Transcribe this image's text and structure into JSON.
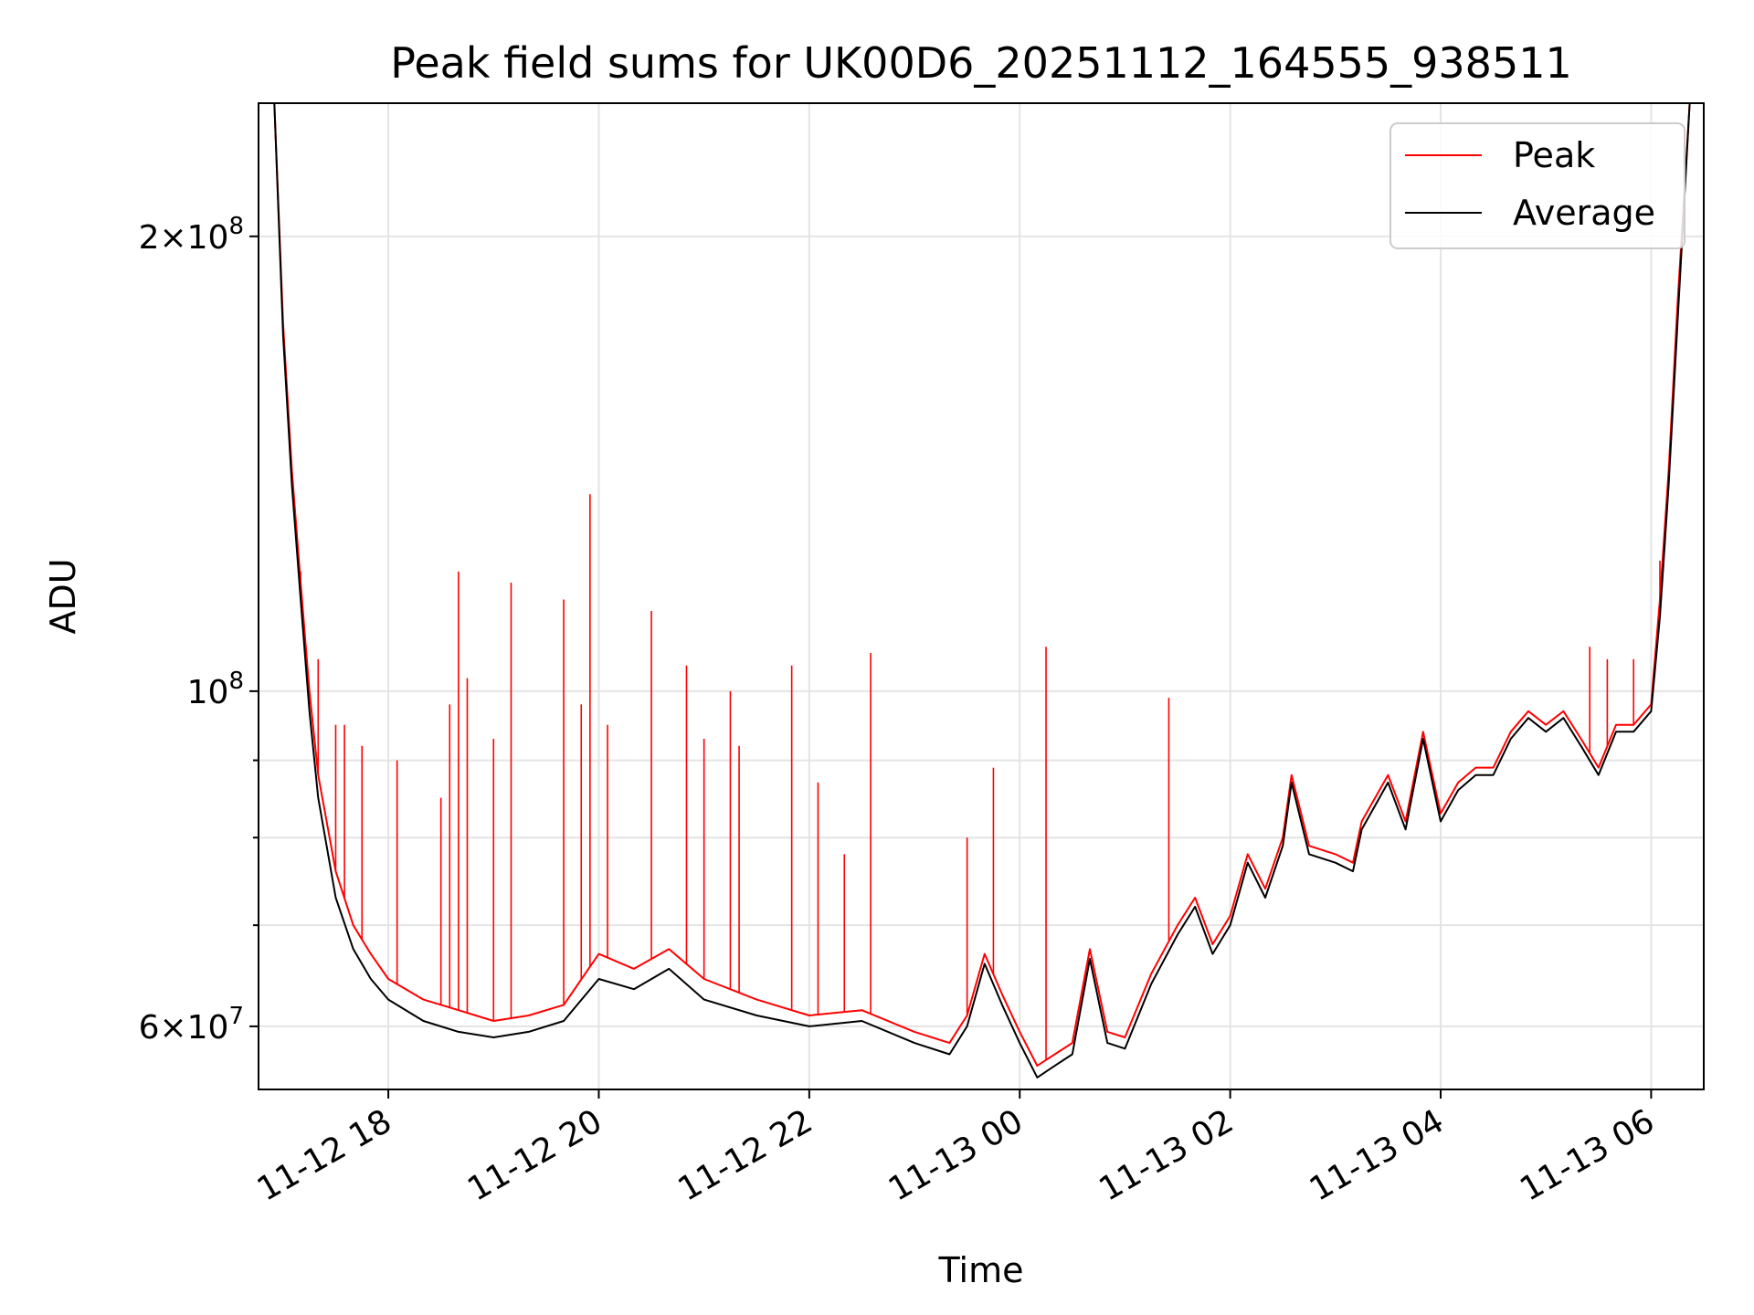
{
  "chart_data": {
    "type": "line",
    "title": "Peak field sums for UK00D6_20251112_164555_938511",
    "xlabel": "Time",
    "ylabel": "ADU",
    "yscale": "log",
    "grid": true,
    "legend": "top-right",
    "x_range": [
      "2025-11-12 16:46",
      "2025-11-13 06:30"
    ],
    "ylim": [
      54500000,
      245000000
    ],
    "x_ticks": [
      {
        "t": "2025-11-12 18:00",
        "label": "11-12 18"
      },
      {
        "t": "2025-11-12 20:00",
        "label": "11-12 20"
      },
      {
        "t": "2025-11-12 22:00",
        "label": "11-12 22"
      },
      {
        "t": "2025-11-13 00:00",
        "label": "11-13 00"
      },
      {
        "t": "2025-11-13 02:00",
        "label": "11-13 02"
      },
      {
        "t": "2025-11-13 04:00",
        "label": "11-13 04"
      },
      {
        "t": "2025-11-13 06:00",
        "label": "11-13 06"
      }
    ],
    "y_ticks_major": [
      {
        "v": 60000000,
        "base": "6",
        "exp": "7"
      },
      {
        "v": 100000000,
        "base": "",
        "exp": "8"
      },
      {
        "v": 200000000,
        "base": "2",
        "exp": "8"
      }
    ],
    "y_ticks_minor": [
      70000000,
      80000000,
      90000000
    ],
    "series": [
      {
        "name": "Peak",
        "color": "#ff0000",
        "points": [
          [
            "2025-11-12 16:55",
            245000000
          ],
          [
            "2025-11-12 17:00",
            175000000
          ],
          [
            "2025-11-12 17:05",
            140000000
          ],
          [
            "2025-11-12 17:10",
            118000000
          ],
          [
            "2025-11-12 17:15",
            100000000
          ],
          [
            "2025-11-12 17:20",
            88000000
          ],
          [
            "2025-11-12 17:30",
            76000000
          ],
          [
            "2025-11-12 17:40",
            70000000
          ],
          [
            "2025-11-12 17:50",
            67000000
          ],
          [
            "2025-11-12 18:00",
            64500000
          ],
          [
            "2025-11-12 18:20",
            62500000
          ],
          [
            "2025-11-12 18:40",
            61500000
          ],
          [
            "2025-11-12 19:00",
            60500000
          ],
          [
            "2025-11-12 19:20",
            61000000
          ],
          [
            "2025-11-12 19:40",
            62000000
          ],
          [
            "2025-11-12 20:00",
            67000000
          ],
          [
            "2025-11-12 20:20",
            65500000
          ],
          [
            "2025-11-12 20:40",
            67500000
          ],
          [
            "2025-11-12 21:00",
            64500000
          ],
          [
            "2025-11-12 21:30",
            62500000
          ],
          [
            "2025-11-12 22:00",
            61000000
          ],
          [
            "2025-11-12 22:30",
            61500000
          ],
          [
            "2025-11-12 23:00",
            59500000
          ],
          [
            "2025-11-12 23:20",
            58500000
          ],
          [
            "2025-11-12 23:30",
            61000000
          ],
          [
            "2025-11-12 23:40",
            67000000
          ],
          [
            "2025-11-12 23:50",
            63000000
          ],
          [
            "2025-11-13 00:00",
            59500000
          ],
          [
            "2025-11-13 00:10",
            56500000
          ],
          [
            "2025-11-13 00:20",
            57500000
          ],
          [
            "2025-11-13 00:30",
            58500000
          ],
          [
            "2025-11-13 00:40",
            67500000
          ],
          [
            "2025-11-13 00:50",
            59500000
          ],
          [
            "2025-11-13 01:00",
            59000000
          ],
          [
            "2025-11-13 01:15",
            65000000
          ],
          [
            "2025-11-13 01:30",
            70000000
          ],
          [
            "2025-11-13 01:40",
            73000000
          ],
          [
            "2025-11-13 01:50",
            68000000
          ],
          [
            "2025-11-13 02:00",
            71000000
          ],
          [
            "2025-11-13 02:10",
            78000000
          ],
          [
            "2025-11-13 02:20",
            74000000
          ],
          [
            "2025-11-13 02:30",
            80000000
          ],
          [
            "2025-11-13 02:35",
            88000000
          ],
          [
            "2025-11-13 02:45",
            79000000
          ],
          [
            "2025-11-13 03:00",
            78000000
          ],
          [
            "2025-11-13 03:10",
            77000000
          ],
          [
            "2025-11-13 03:15",
            82000000
          ],
          [
            "2025-11-13 03:30",
            88000000
          ],
          [
            "2025-11-13 03:40",
            82000000
          ],
          [
            "2025-11-13 03:50",
            94000000
          ],
          [
            "2025-11-13 04:00",
            83000000
          ],
          [
            "2025-11-13 04:10",
            87000000
          ],
          [
            "2025-11-13 04:20",
            89000000
          ],
          [
            "2025-11-13 04:30",
            89000000
          ],
          [
            "2025-11-13 04:40",
            94000000
          ],
          [
            "2025-11-13 04:50",
            97000000
          ],
          [
            "2025-11-13 05:00",
            95000000
          ],
          [
            "2025-11-13 05:10",
            97000000
          ],
          [
            "2025-11-13 05:20",
            93000000
          ],
          [
            "2025-11-13 05:30",
            89000000
          ],
          [
            "2025-11-13 05:40",
            95000000
          ],
          [
            "2025-11-13 05:50",
            95000000
          ],
          [
            "2025-11-13 06:00",
            98000000
          ],
          [
            "2025-11-13 06:05",
            115000000
          ],
          [
            "2025-11-13 06:10",
            140000000
          ],
          [
            "2025-11-13 06:15",
            180000000
          ],
          [
            "2025-11-13 06:22",
            245000000
          ]
        ],
        "spikes": [
          [
            "2025-11-12 17:10",
            120000000
          ],
          [
            "2025-11-12 17:20",
            105000000
          ],
          [
            "2025-11-12 17:30",
            95000000
          ],
          [
            "2025-11-12 17:35",
            95000000
          ],
          [
            "2025-11-12 17:45",
            92000000
          ],
          [
            "2025-11-12 18:05",
            90000000
          ],
          [
            "2025-11-12 18:30",
            85000000
          ],
          [
            "2025-11-12 18:35",
            98000000
          ],
          [
            "2025-11-12 18:40",
            120000000
          ],
          [
            "2025-11-12 18:45",
            102000000
          ],
          [
            "2025-11-12 19:00",
            93000000
          ],
          [
            "2025-11-12 19:10",
            118000000
          ],
          [
            "2025-11-12 19:40",
            115000000
          ],
          [
            "2025-11-12 19:50",
            98000000
          ],
          [
            "2025-11-12 19:55",
            135000000
          ],
          [
            "2025-11-12 20:05",
            95000000
          ],
          [
            "2025-11-12 20:30",
            113000000
          ],
          [
            "2025-11-12 20:50",
            104000000
          ],
          [
            "2025-11-12 21:00",
            93000000
          ],
          [
            "2025-11-12 21:15",
            100000000
          ],
          [
            "2025-11-12 21:20",
            92000000
          ],
          [
            "2025-11-12 21:50",
            104000000
          ],
          [
            "2025-11-12 22:05",
            87000000
          ],
          [
            "2025-11-12 22:20",
            78000000
          ],
          [
            "2025-11-12 22:35",
            106000000
          ],
          [
            "2025-11-12 23:30",
            80000000
          ],
          [
            "2025-11-12 23:45",
            89000000
          ],
          [
            "2025-11-13 00:15",
            107000000
          ],
          [
            "2025-11-13 01:25",
            99000000
          ],
          [
            "2025-11-13 05:25",
            107000000
          ],
          [
            "2025-11-13 05:35",
            105000000
          ],
          [
            "2025-11-13 05:50",
            105000000
          ],
          [
            "2025-11-13 06:05",
            122000000
          ]
        ]
      },
      {
        "name": "Average",
        "color": "#000000",
        "points": [
          [
            "2025-11-12 16:55",
            245000000
          ],
          [
            "2025-11-12 17:00",
            172000000
          ],
          [
            "2025-11-12 17:05",
            137000000
          ],
          [
            "2025-11-12 17:10",
            115000000
          ],
          [
            "2025-11-12 17:15",
            97000000
          ],
          [
            "2025-11-12 17:20",
            85000000
          ],
          [
            "2025-11-12 17:30",
            73000000
          ],
          [
            "2025-11-12 17:40",
            67500000
          ],
          [
            "2025-11-12 17:50",
            64500000
          ],
          [
            "2025-11-12 18:00",
            62500000
          ],
          [
            "2025-11-12 18:20",
            60500000
          ],
          [
            "2025-11-12 18:40",
            59500000
          ],
          [
            "2025-11-12 19:00",
            59000000
          ],
          [
            "2025-11-12 19:20",
            59500000
          ],
          [
            "2025-11-12 19:40",
            60500000
          ],
          [
            "2025-11-12 20:00",
            64500000
          ],
          [
            "2025-11-12 20:20",
            63500000
          ],
          [
            "2025-11-12 20:40",
            65500000
          ],
          [
            "2025-11-12 21:00",
            62500000
          ],
          [
            "2025-11-12 21:30",
            61000000
          ],
          [
            "2025-11-12 22:00",
            60000000
          ],
          [
            "2025-11-12 22:30",
            60500000
          ],
          [
            "2025-11-12 23:00",
            58500000
          ],
          [
            "2025-11-12 23:20",
            57500000
          ],
          [
            "2025-11-12 23:30",
            60000000
          ],
          [
            "2025-11-12 23:40",
            66000000
          ],
          [
            "2025-11-12 23:50",
            62000000
          ],
          [
            "2025-11-13 00:00",
            58500000
          ],
          [
            "2025-11-13 00:10",
            55500000
          ],
          [
            "2025-11-13 00:20",
            56500000
          ],
          [
            "2025-11-13 00:30",
            57500000
          ],
          [
            "2025-11-13 00:40",
            66500000
          ],
          [
            "2025-11-13 00:50",
            58500000
          ],
          [
            "2025-11-13 01:00",
            58000000
          ],
          [
            "2025-11-13 01:15",
            64000000
          ],
          [
            "2025-11-13 01:30",
            69000000
          ],
          [
            "2025-11-13 01:40",
            72000000
          ],
          [
            "2025-11-13 01:50",
            67000000
          ],
          [
            "2025-11-13 02:00",
            70000000
          ],
          [
            "2025-11-13 02:10",
            77000000
          ],
          [
            "2025-11-13 02:20",
            73000000
          ],
          [
            "2025-11-13 02:30",
            79000000
          ],
          [
            "2025-11-13 02:35",
            87000000
          ],
          [
            "2025-11-13 02:45",
            78000000
          ],
          [
            "2025-11-13 03:00",
            77000000
          ],
          [
            "2025-11-13 03:10",
            76000000
          ],
          [
            "2025-11-13 03:15",
            81000000
          ],
          [
            "2025-11-13 03:30",
            87000000
          ],
          [
            "2025-11-13 03:40",
            81000000
          ],
          [
            "2025-11-13 03:50",
            93000000
          ],
          [
            "2025-11-13 04:00",
            82000000
          ],
          [
            "2025-11-13 04:10",
            86000000
          ],
          [
            "2025-11-13 04:20",
            88000000
          ],
          [
            "2025-11-13 04:30",
            88000000
          ],
          [
            "2025-11-13 04:40",
            93000000
          ],
          [
            "2025-11-13 04:50",
            96000000
          ],
          [
            "2025-11-13 05:00",
            94000000
          ],
          [
            "2025-11-13 05:10",
            96000000
          ],
          [
            "2025-11-13 05:20",
            92000000
          ],
          [
            "2025-11-13 05:30",
            88000000
          ],
          [
            "2025-11-13 05:40",
            94000000
          ],
          [
            "2025-11-13 05:50",
            94000000
          ],
          [
            "2025-11-13 06:00",
            97000000
          ],
          [
            "2025-11-13 06:05",
            112000000
          ],
          [
            "2025-11-13 06:10",
            137000000
          ],
          [
            "2025-11-13 06:15",
            175000000
          ],
          [
            "2025-11-13 06:22",
            245000000
          ]
        ]
      }
    ]
  }
}
